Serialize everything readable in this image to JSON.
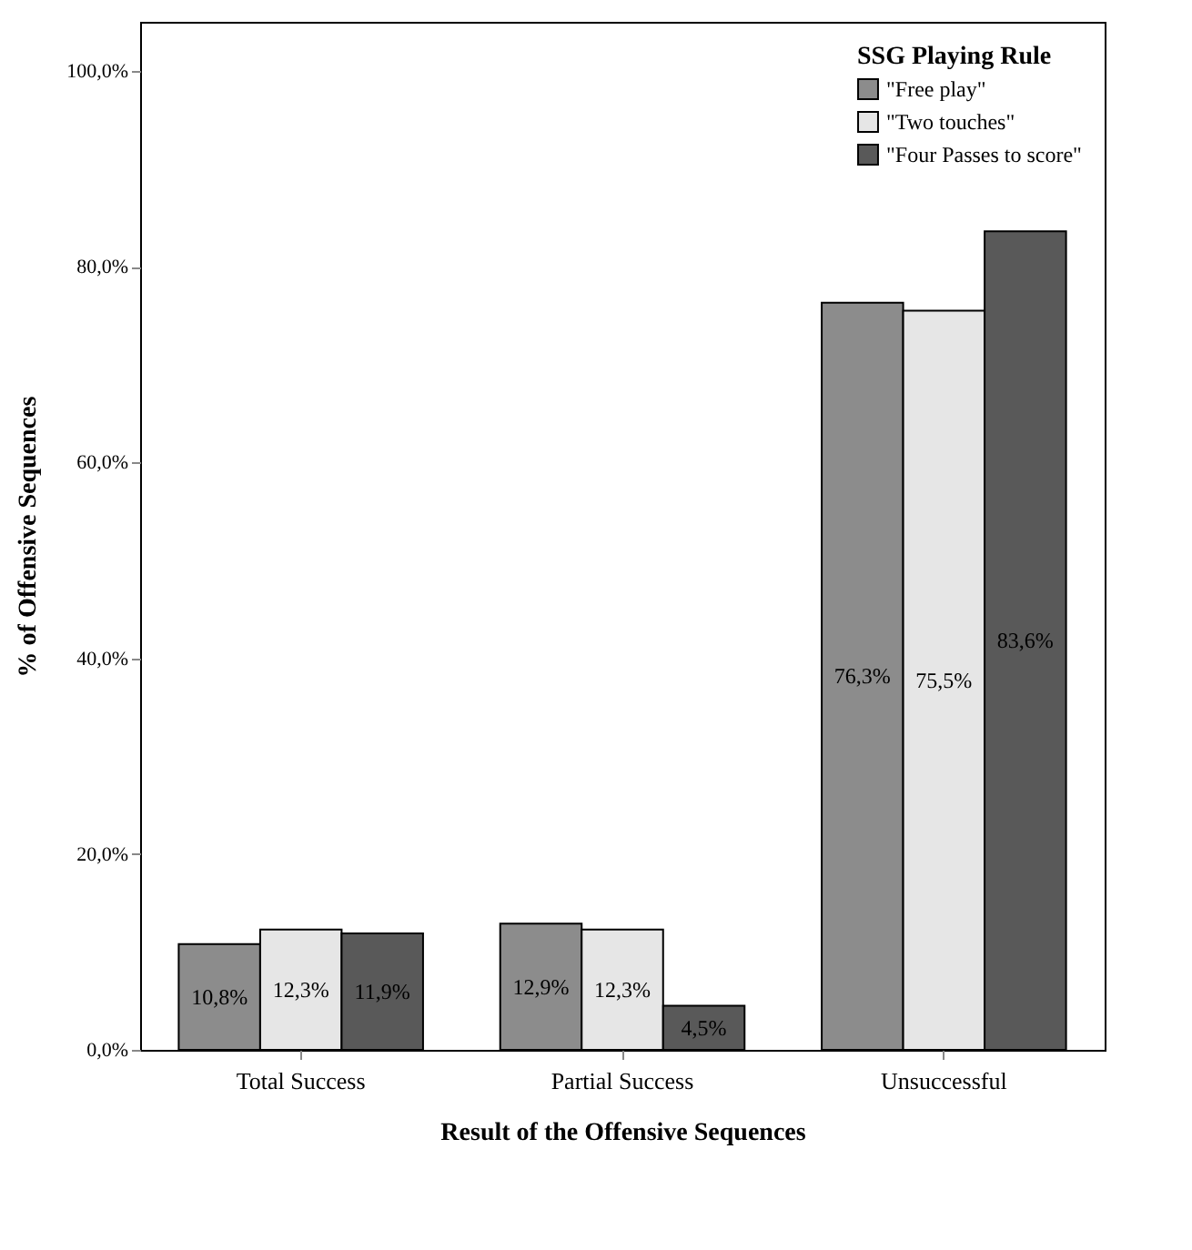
{
  "chart_data": {
    "type": "bar",
    "xlabel": "Result of the Offensive Sequences",
    "ylabel": "% of Offensive Sequences",
    "legend_title": "SSG Playing Rule",
    "legend": "top right",
    "categories": [
      "Total Success",
      "Partial Success",
      "Unsuccessful"
    ],
    "series": [
      {
        "name": "\"Free play\"",
        "color": "#8c8c8c",
        "values": [
          10.8,
          12.9,
          76.3
        ],
        "value_labels": [
          "10,8%",
          "12,9%",
          "76,3%"
        ]
      },
      {
        "name": "\"Two touches\"",
        "color": "#e6e6e6",
        "values": [
          12.3,
          12.3,
          75.5
        ],
        "value_labels": [
          "12,3%",
          "12,3%",
          "75,5%"
        ]
      },
      {
        "name": "\"Four Passes to score\"",
        "color": "#595959",
        "values": [
          11.9,
          4.5,
          83.6
        ],
        "value_labels": [
          "11,9%",
          "4,5%",
          "83,6%"
        ]
      }
    ],
    "ylim": [
      0,
      105
    ],
    "yticks": [
      {
        "value": 0,
        "label": "0,0%"
      },
      {
        "value": 20,
        "label": "20,0%"
      },
      {
        "value": 40,
        "label": "40,0%"
      },
      {
        "value": 60,
        "label": "60,0%"
      },
      {
        "value": 80,
        "label": "80,0%"
      },
      {
        "value": 100,
        "label": "100,0%"
      }
    ]
  }
}
